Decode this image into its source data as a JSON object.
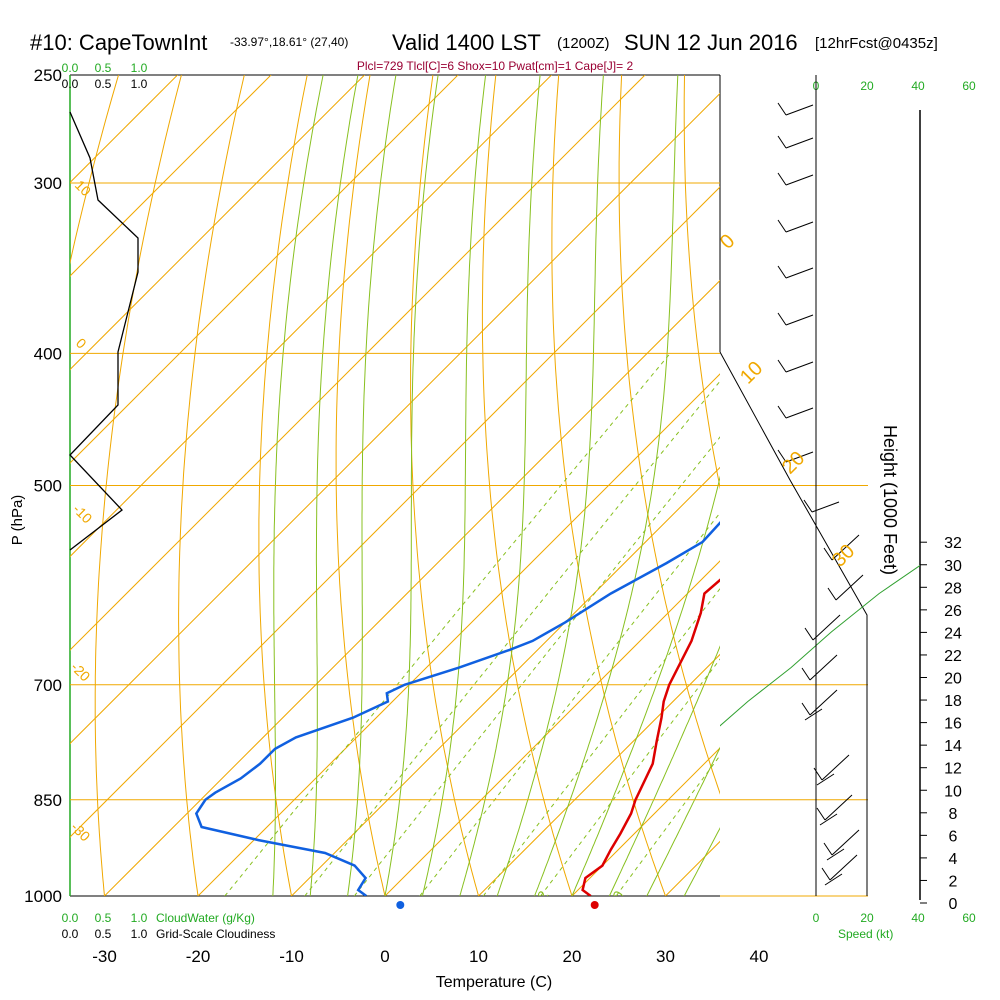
{
  "header": {
    "station": "#10: CapeTownInt",
    "location": "-33.97°,18.61° (27,40)",
    "valid": "Valid 1400 LST",
    "zulu": "(1200Z)",
    "date": "SUN 12 Jun 2016",
    "forecast": "[12hrFcst@0435z]",
    "indices": "Plcl=729 Tlcl[C]=6 Shox=10 Pwat[cm]=1 Cape[J]= 2"
  },
  "colors": {
    "temperature": "#dd0000",
    "dewpoint": "#1060e0",
    "isotherm": "#f0a800",
    "dry_adiabat": "#f0a800",
    "moist_adiabat": "#88c020",
    "mixing_ratio": "#88c020",
    "height_curve": "#30a030",
    "cloud": "#000000",
    "label_green": "#22aa22",
    "indices": "#990033"
  },
  "chart_data": {
    "type": "line",
    "title": "#10: CapeTownInt Valid 1400 LST (1200Z) SUN 12 Jun 2016",
    "xlabel": "Temperature (C)",
    "ylabel": "P (hPa)",
    "y2label": "Height (1000 Feet)",
    "x_ticks": [
      "-30",
      "-20",
      "-10",
      "0",
      "10",
      "20",
      "30",
      "40"
    ],
    "p_ticks": [
      "250",
      "300",
      "400",
      "500",
      "700",
      "850",
      "1000"
    ],
    "height_ticks": [
      "0",
      "2",
      "4",
      "6",
      "8",
      "10",
      "12",
      "14",
      "16",
      "18",
      "20",
      "22",
      "24",
      "26",
      "28",
      "30",
      "32"
    ],
    "ylim": [
      250,
      1000
    ],
    "xlim": [
      -34,
      36
    ],
    "y_scale": "log (pressure)",
    "skew": "isotherms skewed 45°",
    "grid": true,
    "series": [
      {
        "name": "Temperature",
        "points": [
          [
            22,
            1000
          ],
          [
            20.5,
            990
          ],
          [
            19.5,
            970
          ],
          [
            20,
            950
          ],
          [
            19.2,
            925
          ],
          [
            18.5,
            900
          ],
          [
            17.5,
            870
          ],
          [
            16.5,
            850
          ],
          [
            14.5,
            800
          ],
          [
            12.5,
            770
          ],
          [
            10.5,
            740
          ],
          [
            9,
            720
          ],
          [
            7.8,
            700
          ],
          [
            5.5,
            650
          ],
          [
            3.5,
            620
          ],
          [
            1.8,
            600
          ],
          [
            2.5,
            560
          ],
          [
            2,
            550
          ],
          [
            0,
            500
          ],
          [
            -3,
            450
          ],
          [
            -5.3,
            400
          ],
          [
            -10,
            350
          ],
          [
            -15,
            320
          ],
          [
            -19,
            300
          ],
          [
            -21.5,
            285
          ],
          [
            -23.7,
            270
          ]
        ]
      },
      {
        "name": "Dewpoint",
        "points": [
          [
            -2,
            1000
          ],
          [
            -3.5,
            990
          ],
          [
            -4,
            970
          ],
          [
            -6.5,
            950
          ],
          [
            -11,
            930
          ],
          [
            -19.5,
            910
          ],
          [
            -27,
            890
          ],
          [
            -29,
            870
          ],
          [
            -29.5,
            850
          ],
          [
            -29.2,
            840
          ],
          [
            -28,
            820
          ],
          [
            -27.5,
            800
          ],
          [
            -27.5,
            780
          ],
          [
            -26.5,
            765
          ],
          [
            -22.5,
            740
          ],
          [
            -20.5,
            720
          ],
          [
            -21.5,
            710
          ],
          [
            -20.5,
            700
          ],
          [
            -16.5,
            680
          ],
          [
            -13,
            660
          ],
          [
            -11.5,
            650
          ],
          [
            -10,
            630
          ],
          [
            -8.2,
            600
          ],
          [
            -5.5,
            570
          ],
          [
            -3.9,
            550
          ],
          [
            -4.2,
            520
          ],
          [
            -5.5,
            500
          ],
          [
            -8,
            450
          ],
          [
            -10.8,
            400
          ],
          [
            -15.5,
            350
          ],
          [
            -20,
            320
          ],
          [
            -24.5,
            300
          ],
          [
            -28.5,
            285
          ],
          [
            -30.5,
            270
          ]
        ]
      },
      {
        "name": "Height (1000 Feet)",
        "points": [
          [
            26.6,
            270
          ],
          [
            26.5,
            290
          ],
          [
            25,
            330
          ],
          [
            25,
            360
          ],
          [
            25.5,
            400
          ],
          [
            25.5,
            440
          ],
          [
            24.5,
            480
          ],
          [
            24,
            520
          ],
          [
            22.5,
            560
          ],
          [
            20.5,
            600
          ],
          [
            19.5,
            640
          ],
          [
            19,
            680
          ],
          [
            18,
            720
          ],
          [
            17.5,
            760
          ],
          [
            17.5,
            800
          ]
        ]
      }
    ],
    "bottom_legend": {
      "cloud_water_ticks": [
        "0.0",
        "0.5",
        "1.0"
      ],
      "cloud_water_label": "CloudWater (g/Kg)",
      "cloudiness_ticks": [
        "0.0",
        "0.5",
        "1.0"
      ],
      "cloudiness_label": "Grid-Scale Cloudiness"
    },
    "top_legend": {
      "cloud_water_ticks": [
        "0.0",
        "0.5",
        "1.0"
      ],
      "cloudiness_ticks": [
        "0.0",
        "0.5",
        "1.0"
      ]
    },
    "speed_axis": {
      "ticks": [
        "0",
        "20",
        "40",
        "60"
      ],
      "label": "Speed (kt)"
    },
    "isotherm_labels": [
      "10",
      "0",
      "-10",
      "-20",
      "-30",
      "0",
      "10",
      "20",
      "30"
    ],
    "mixing_ratio_labels": [
      "1",
      "2",
      "3",
      "5",
      "8",
      "12",
      "20"
    ]
  }
}
